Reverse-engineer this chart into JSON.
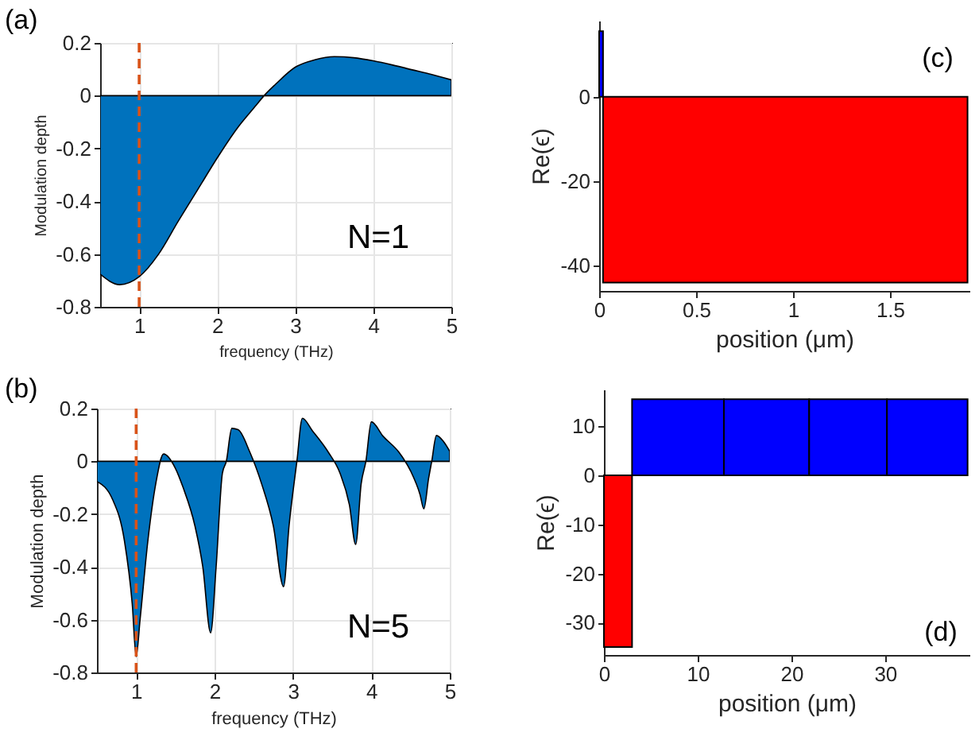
{
  "chart_data": [
    {
      "type": "area",
      "xlabel": "frequency (THz)",
      "ylabel": "Modulation depth",
      "annotations": [
        "(a)",
        "N=1"
      ],
      "color": "#0072bd",
      "x": [
        0.5,
        0.75,
        1.0,
        1.25,
        1.5,
        1.75,
        2.0,
        2.25,
        2.5,
        2.6,
        2.75,
        3.0,
        3.25,
        3.5,
        3.75,
        4.0,
        4.25,
        4.5,
        4.75,
        5.0
      ],
      "values": [
        -0.676,
        -0.716,
        -0.686,
        -0.6,
        -0.476,
        -0.356,
        -0.236,
        -0.126,
        -0.036,
        0,
        0.044,
        0.108,
        0.136,
        0.148,
        0.144,
        0.132,
        0.116,
        0.098,
        0.08,
        0.06
      ],
      "xlim": [
        0.5,
        5
      ],
      "ylim": [
        -0.8,
        0.2
      ],
      "xticks": [
        1,
        2,
        3,
        4,
        5
      ],
      "yticks": [
        -0.8,
        -0.6,
        -0.4,
        -0.2,
        0,
        0.2
      ],
      "grid": true,
      "ref_lines": [
        {
          "axis": "x",
          "value": 1,
          "color": "#d95319",
          "line_style": "dashed"
        }
      ]
    },
    {
      "type": "histogram",
      "xlabel": "position (μm)",
      "ylabel": "Re(ϵ)",
      "annotations": [
        "(c)"
      ],
      "bins": [
        0,
        0.02,
        1.9
      ],
      "values": [
        15.5,
        -44
      ],
      "colors": [
        "#0000ff",
        "#ff0000"
      ],
      "xlim": [
        0,
        1.91
      ],
      "ylim": [
        -46,
        18
      ],
      "xticks": [
        0,
        0.5,
        1,
        1.5
      ],
      "yticks": [
        -40,
        -20,
        0
      ]
    },
    {
      "type": "area",
      "xlabel": "frequency (THz)",
      "ylabel": "Modulation depth",
      "annotations": [
        "(b)",
        "N=5"
      ],
      "color": "#0072bd",
      "x": [
        0.5,
        0.7,
        0.85,
        0.95,
        1.0,
        1.05,
        1.15,
        1.25,
        1.35,
        1.5,
        1.6,
        1.75,
        1.85,
        1.95,
        2.02,
        2.1,
        2.15,
        2.22,
        2.3,
        2.45,
        2.6,
        2.75,
        2.88,
        2.95,
        3.05,
        3.12,
        3.25,
        3.45,
        3.6,
        3.72,
        3.8,
        3.87,
        3.93,
        4.0,
        4.15,
        4.35,
        4.5,
        4.62,
        4.67,
        4.73,
        4.77,
        4.83,
        4.92,
        5.0
      ],
      "values": [
        -0.076,
        -0.145,
        -0.3,
        -0.54,
        -0.74,
        -0.6,
        -0.3,
        -0.085,
        0.028,
        -0.026,
        -0.1,
        -0.245,
        -0.4,
        -0.65,
        -0.4,
        -0.045,
        0,
        0.125,
        0.12,
        0.035,
        -0.085,
        -0.245,
        -0.475,
        -0.245,
        0,
        0.163,
        0.115,
        0.035,
        -0.045,
        -0.165,
        -0.315,
        -0.085,
        0,
        0.15,
        0.095,
        0.035,
        -0.036,
        -0.125,
        -0.18,
        -0.065,
        0,
        0.098,
        0.075,
        0.038
      ],
      "xlim": [
        0.5,
        5
      ],
      "ylim": [
        -0.8,
        0.2
      ],
      "xticks": [
        1,
        2,
        3,
        4,
        5
      ],
      "yticks": [
        -0.8,
        -0.6,
        -0.4,
        -0.2,
        0,
        0.2
      ],
      "grid": true,
      "ref_lines": [
        {
          "axis": "x",
          "value": 1,
          "color": "#d95319",
          "line_style": "dashed"
        }
      ]
    },
    {
      "type": "histogram",
      "xlabel": "position (μm)",
      "ylabel": "Re(ϵ)",
      "annotations": [
        "(d)"
      ],
      "bins": [
        0,
        3,
        12.8,
        21.9,
        30.2,
        38.8
      ],
      "values": [
        -35,
        15.5,
        15.5,
        15.5,
        15.5
      ],
      "colors": [
        "#ff0000",
        "#0000ff",
        "#0000ff",
        "#0000ff",
        "#0000ff"
      ],
      "xlim": [
        0,
        39
      ],
      "ylim": [
        -36.6,
        17.5
      ],
      "xticks": [
        0,
        10,
        20,
        30
      ],
      "yticks": [
        -30,
        -20,
        -10,
        0,
        10
      ]
    }
  ]
}
